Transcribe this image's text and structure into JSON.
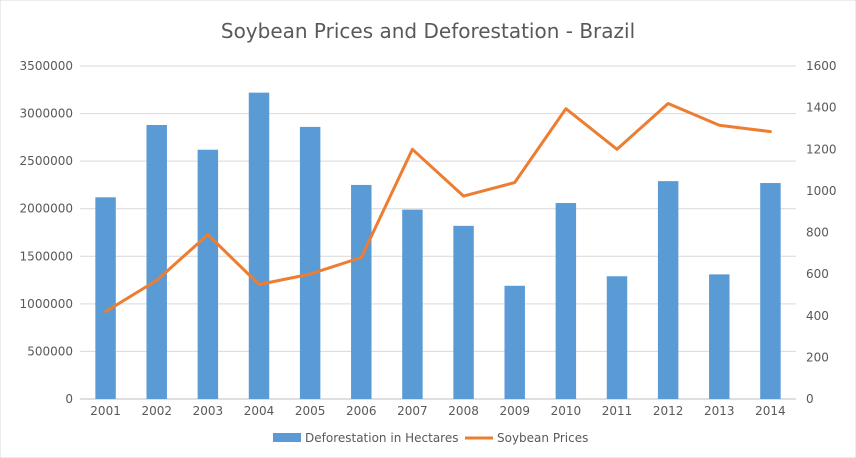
{
  "chart_data": {
    "type": "bar",
    "title": "Soybean Prices and Deforestation - Brazil",
    "categories": [
      "2001",
      "2002",
      "2003",
      "2004",
      "2005",
      "2006",
      "2007",
      "2008",
      "2009",
      "2010",
      "2011",
      "2012",
      "2013",
      "2014"
    ],
    "series": [
      {
        "name": "Deforestation in Hectares",
        "type": "bar",
        "axis": "left",
        "color": "#5B9BD5",
        "values": [
          2120000,
          2880000,
          2620000,
          3220000,
          2860000,
          2250000,
          1990000,
          1820000,
          1190000,
          2060000,
          1290000,
          2290000,
          1310000,
          2270000
        ]
      },
      {
        "name": "Soybean Prices",
        "type": "line",
        "axis": "right",
        "color": "#ED7D31",
        "values": [
          420,
          570,
          790,
          550,
          600,
          680,
          1200,
          975,
          1040,
          1395,
          1200,
          1420,
          1315,
          1285
        ]
      }
    ],
    "y_left": {
      "min": 0,
      "max": 3500000,
      "ticks": [
        "0",
        "500000",
        "1000000",
        "1500000",
        "2000000",
        "2500000",
        "3000000",
        "3500000"
      ]
    },
    "y_right": {
      "min": 0,
      "max": 1600,
      "ticks": [
        "0",
        "200",
        "400",
        "600",
        "800",
        "1000",
        "1200",
        "1400",
        "1600"
      ]
    },
    "grid": true,
    "legend_position": "bottom"
  }
}
